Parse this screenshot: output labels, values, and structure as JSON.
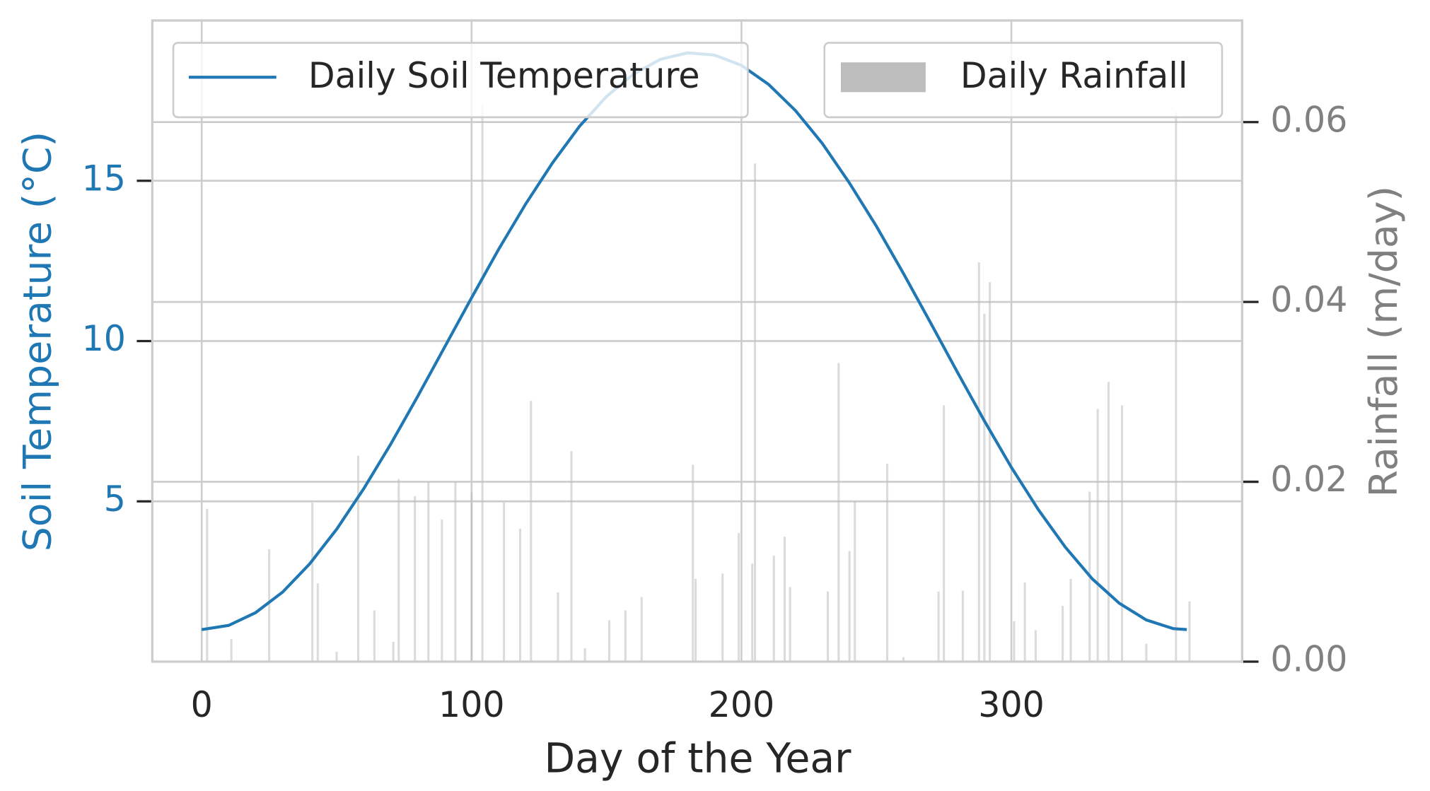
{
  "chart_data": {
    "type": "line",
    "xlabel": "Day of the Year",
    "ylabel": "Soil Temperature (°C)",
    "y2label": "Rainfall (m/day)",
    "xlim": [
      -18.3,
      385.5
    ],
    "ylim": [
      0,
      20
    ],
    "y2lim": [
      0,
      0.0713
    ],
    "xticks": [
      0,
      100,
      200,
      300
    ],
    "yticks": [
      5,
      10,
      15
    ],
    "y2ticks": [
      {
        "value": 0,
        "label": "0.00"
      },
      0.02,
      0.04,
      0.06
    ],
    "grid": true,
    "y2_color": "#808080",
    "series": [
      {
        "name": "Daily Soil Temperature",
        "type": "line",
        "color": "#1f77b4",
        "legend_loc": "upper left",
        "x": [
          0,
          10,
          20,
          30,
          40,
          50,
          60,
          70,
          80,
          90,
          100,
          110,
          120,
          130,
          140,
          150,
          160,
          170,
          180,
          190,
          200,
          210,
          220,
          230,
          240,
          250,
          260,
          270,
          280,
          290,
          300,
          310,
          320,
          330,
          340,
          350,
          360,
          365
        ],
        "values": [
          1.0,
          1.13,
          1.53,
          2.17,
          3.05,
          4.13,
          5.39,
          6.78,
          8.27,
          9.81,
          11.35,
          12.86,
          14.27,
          15.56,
          16.7,
          17.63,
          18.33,
          18.79,
          18.99,
          18.92,
          18.6,
          18.01,
          17.19,
          16.16,
          14.93,
          13.58,
          12.11,
          10.58,
          9.03,
          7.51,
          6.06,
          4.74,
          3.57,
          2.58,
          1.82,
          1.3,
          1.03,
          1.0
        ]
      },
      {
        "name": "Daily Rainfall",
        "type": "bar",
        "axis": "y2",
        "color": "#bdbdbd",
        "alpha": 0.55,
        "legend_loc": "upper right",
        "x": [
          2,
          11,
          25,
          41,
          43,
          50,
          58,
          64,
          71,
          73,
          79,
          84,
          89,
          94,
          100,
          104,
          112,
          118,
          122,
          132,
          137,
          142,
          151,
          157,
          163,
          182,
          183,
          193,
          199,
          204,
          205,
          212,
          216,
          218,
          232,
          236,
          240,
          242,
          254,
          260,
          273,
          275,
          282,
          288,
          290,
          292,
          301,
          305,
          309,
          319,
          322,
          329,
          332,
          336,
          341,
          350,
          361,
          366
        ],
        "values": [
          0.017,
          0.0025,
          0.0125,
          0.0177,
          0.0087,
          0.0011,
          0.0229,
          0.0057,
          0.0022,
          0.0203,
          0.0184,
          0.02,
          0.0158,
          0.02,
          0.0188,
          0.062,
          0.0177,
          0.0148,
          0.029,
          0.0077,
          0.0234,
          0.0015,
          0.0046,
          0.0057,
          0.0072,
          0.0219,
          0.0092,
          0.0098,
          0.0143,
          0.0109,
          0.0554,
          0.0118,
          0.0139,
          0.0083,
          0.0078,
          0.0332,
          0.0123,
          0.0179,
          0.022,
          0.0005,
          0.0078,
          0.0285,
          0.0079,
          0.0444,
          0.0387,
          0.0422,
          0.0045,
          0.0088,
          0.0035,
          0.0062,
          0.0092,
          0.0189,
          0.0281,
          0.0311,
          0.0285,
          0.002,
          0.0611,
          0.0067
        ]
      }
    ]
  }
}
